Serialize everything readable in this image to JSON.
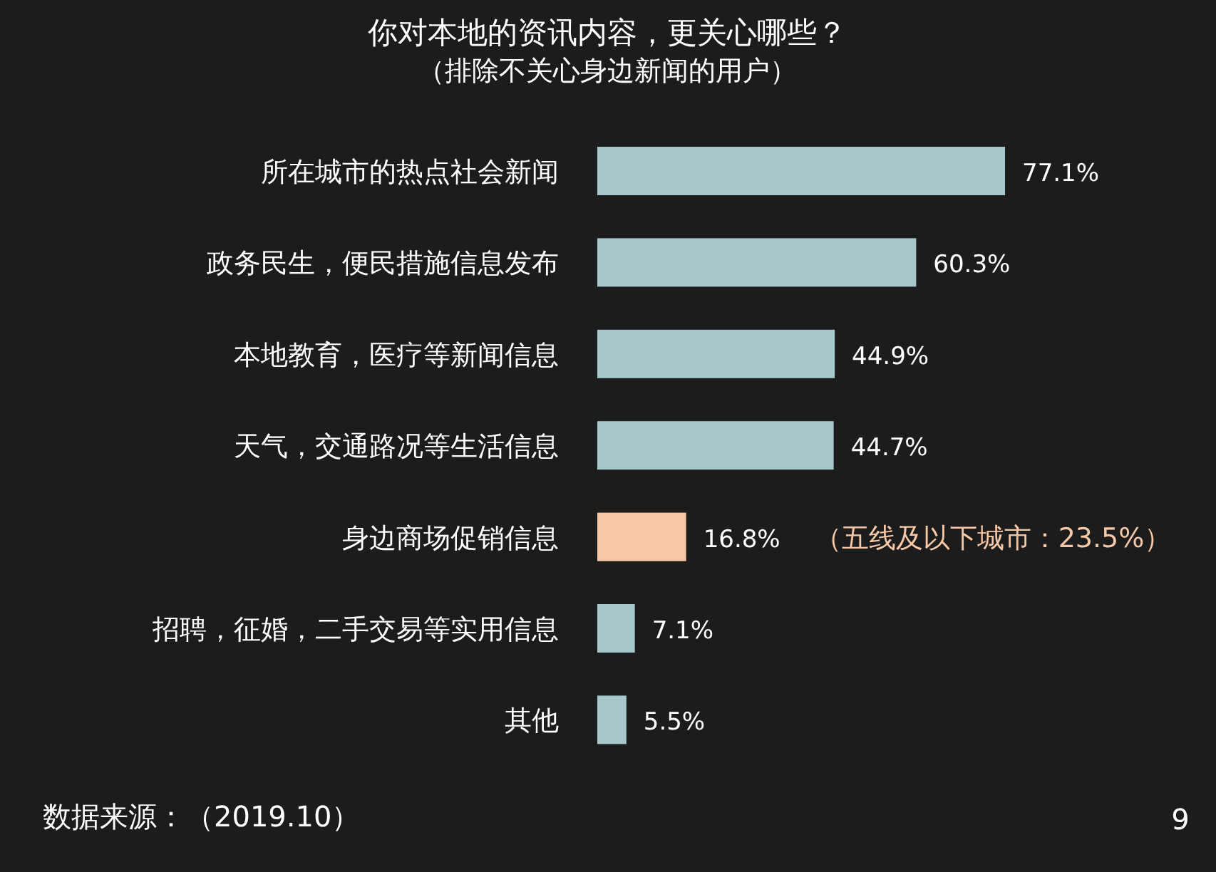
{
  "chart_data": {
    "type": "bar",
    "orientation": "horizontal",
    "title": "你对本地的资讯内容，更关心哪些？",
    "subtitle": "（排除不关心身边新闻的用户）",
    "categories": [
      "所在城市的热点社会新闻",
      "政务民生，便民措施信息发布",
      "本地教育，医疗等新闻信息",
      "天气，交通路况等生活信息",
      "身边商场促销信息",
      "招聘，征婚，二手交易等实用信息",
      "其他"
    ],
    "values": [
      77.1,
      60.3,
      44.9,
      44.7,
      16.8,
      7.1,
      5.5
    ],
    "colors": [
      "#a8c7cb",
      "#a8c7cb",
      "#a8c7cb",
      "#a8c7cb",
      "#f6c8a8",
      "#a8c7cb",
      "#a8c7cb"
    ],
    "value_labels": [
      "77.1%",
      "60.3%",
      "44.9%",
      "44.7%",
      "16.8%",
      "7.1%",
      "5.5%"
    ],
    "annotations": [
      "（五线及以下城市：23.5%）",
      "数据来源：（2019.10）",
      "9"
    ]
  }
}
